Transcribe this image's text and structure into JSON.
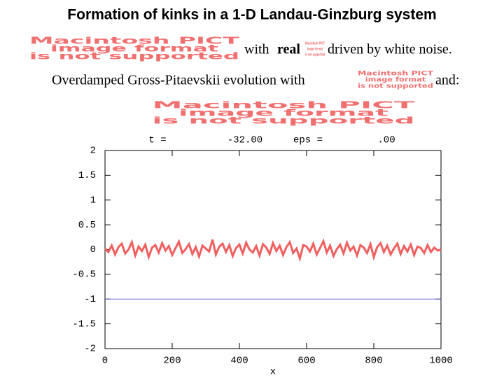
{
  "title": "Formation of kinks in a 1-D Landau-Ginzburg system",
  "line1": [
    "with",
    "real",
    "driven by white noise."
  ],
  "line2": [
    "Overdamped Gross-Pitaevskii evolution with",
    "and:"
  ],
  "placeholders": [
    [
      "Macintosh PICT",
      "image format",
      "is not supported"
    ],
    [
      "Macintosh PICT",
      "image format",
      "is not supported"
    ],
    [
      "Macintosh PICT",
      "image format",
      "is not supported"
    ],
    [
      "Macintosh PICT",
      "image format",
      "is not supported"
    ]
  ],
  "chart_data": {
    "type": "line",
    "annotations": [
      "t =",
      "-32.00",
      "eps =",
      ".00"
    ],
    "x_label": "x",
    "xlim": [
      0,
      1000
    ],
    "xticks": [
      0,
      200,
      400,
      600,
      800,
      1000
    ],
    "ylim": [
      -2,
      2
    ],
    "yticks": [
      -2,
      -1.5,
      -1,
      -0.5,
      0,
      0.5,
      1,
      1.5,
      2
    ],
    "series": [
      {
        "color": "#f06060",
        "x": [
          0,
          10,
          20,
          30,
          40,
          50,
          60,
          70,
          80,
          90,
          100,
          110,
          120,
          130,
          140,
          150,
          160,
          170,
          180,
          190,
          200,
          210,
          220,
          230,
          240,
          250,
          260,
          270,
          280,
          290,
          300,
          310,
          320,
          330,
          340,
          350,
          360,
          370,
          380,
          390,
          400,
          410,
          420,
          430,
          440,
          450,
          460,
          470,
          480,
          490,
          500,
          510,
          520,
          530,
          540,
          550,
          560,
          570,
          580,
          590,
          600,
          610,
          620,
          630,
          640,
          650,
          660,
          670,
          680,
          690,
          700,
          710,
          720,
          730,
          740,
          750,
          760,
          770,
          780,
          790,
          800,
          810,
          820,
          830,
          840,
          850,
          860,
          870,
          880,
          890,
          900,
          910,
          920,
          930,
          940,
          950,
          960,
          970,
          980,
          990,
          1000
        ],
        "values": [
          0.02,
          -0.05,
          0.08,
          -0.1,
          0.05,
          0.12,
          -0.08,
          0.0,
          0.15,
          -0.12,
          0.06,
          -0.03,
          0.1,
          -0.15,
          0.04,
          0.09,
          -0.06,
          0.13,
          -0.02,
          0.07,
          -0.11,
          0.03,
          0.16,
          -0.07,
          0.01,
          0.11,
          -0.09,
          0.05,
          -0.14,
          0.08,
          0.02,
          -0.04,
          0.2,
          -0.1,
          0.06,
          0.12,
          -0.05,
          0.09,
          -0.13,
          0.03,
          0.1,
          -0.08,
          0.14,
          0.0,
          -0.06,
          0.07,
          -0.12,
          0.11,
          0.04,
          -0.09,
          0.13,
          -0.03,
          0.08,
          -0.11,
          0.05,
          0.15,
          -0.07,
          0.02,
          -0.18,
          0.09,
          0.06,
          -0.04,
          0.12,
          -0.1,
          0.03,
          0.17,
          -0.06,
          0.08,
          -0.13,
          0.01,
          0.1,
          -0.08,
          0.14,
          -0.02,
          0.06,
          -0.12,
          0.09,
          0.04,
          -0.07,
          0.11,
          -0.15,
          0.05,
          0.13,
          -0.05,
          0.08,
          -0.1,
          0.02,
          0.12,
          -0.09,
          0.07,
          -0.04,
          0.1,
          -0.11,
          0.06,
          0.03,
          -0.07,
          0.09,
          -0.05,
          0.04,
          -0.02,
          0.0
        ]
      },
      {
        "color": "#6666cc",
        "x": [
          0,
          1000
        ],
        "values": [
          -1,
          -1
        ]
      }
    ]
  }
}
